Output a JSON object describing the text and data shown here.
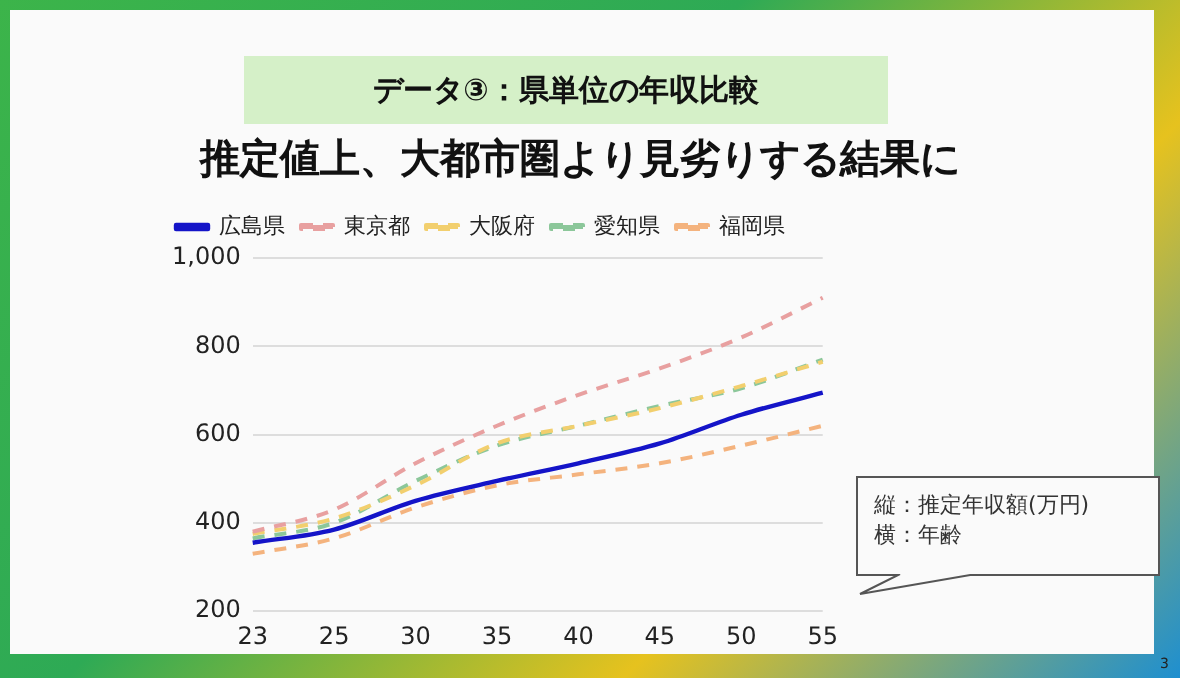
{
  "chart_data": {
    "type": "line",
    "title": "データ③：県単位の年収比較",
    "subtitle": "推定値上、大都市圏より見劣りする結果に",
    "categories": [
      "23",
      "25",
      "30",
      "35",
      "40",
      "45",
      "50",
      "55"
    ],
    "series": [
      {
        "name": "広島県",
        "color": "#1414c8",
        "line_style": "solid",
        "values": [
          355,
          385,
          450,
          495,
          535,
          580,
          645,
          695
        ]
      },
      {
        "name": "東京都",
        "color": "#e8a0a0",
        "line_style": "dashed",
        "values": [
          380,
          430,
          535,
          620,
          690,
          750,
          820,
          910
        ]
      },
      {
        "name": "大阪府",
        "color": "#f2cf6e",
        "line_style": "dashed",
        "values": [
          375,
          410,
          485,
          580,
          620,
          660,
          710,
          765
        ]
      },
      {
        "name": "愛知県",
        "color": "#8cc79a",
        "line_style": "dashed",
        "values": [
          365,
          400,
          495,
          575,
          620,
          665,
          705,
          770
        ]
      },
      {
        "name": "福岡県",
        "color": "#f4b37e",
        "line_style": "dashed",
        "values": [
          330,
          365,
          435,
          485,
          510,
          535,
          575,
          620
        ]
      }
    ],
    "ylim": [
      200,
      1000
    ],
    "yticks": [
      200,
      400,
      600,
      800,
      {
        "value": 1000,
        "label": "1,000"
      }
    ],
    "grid": "y",
    "legend": "top left",
    "marker": "none",
    "annotations": [
      "縦：推定年収額(万円)",
      "横：年齢",
      "3"
    ]
  }
}
